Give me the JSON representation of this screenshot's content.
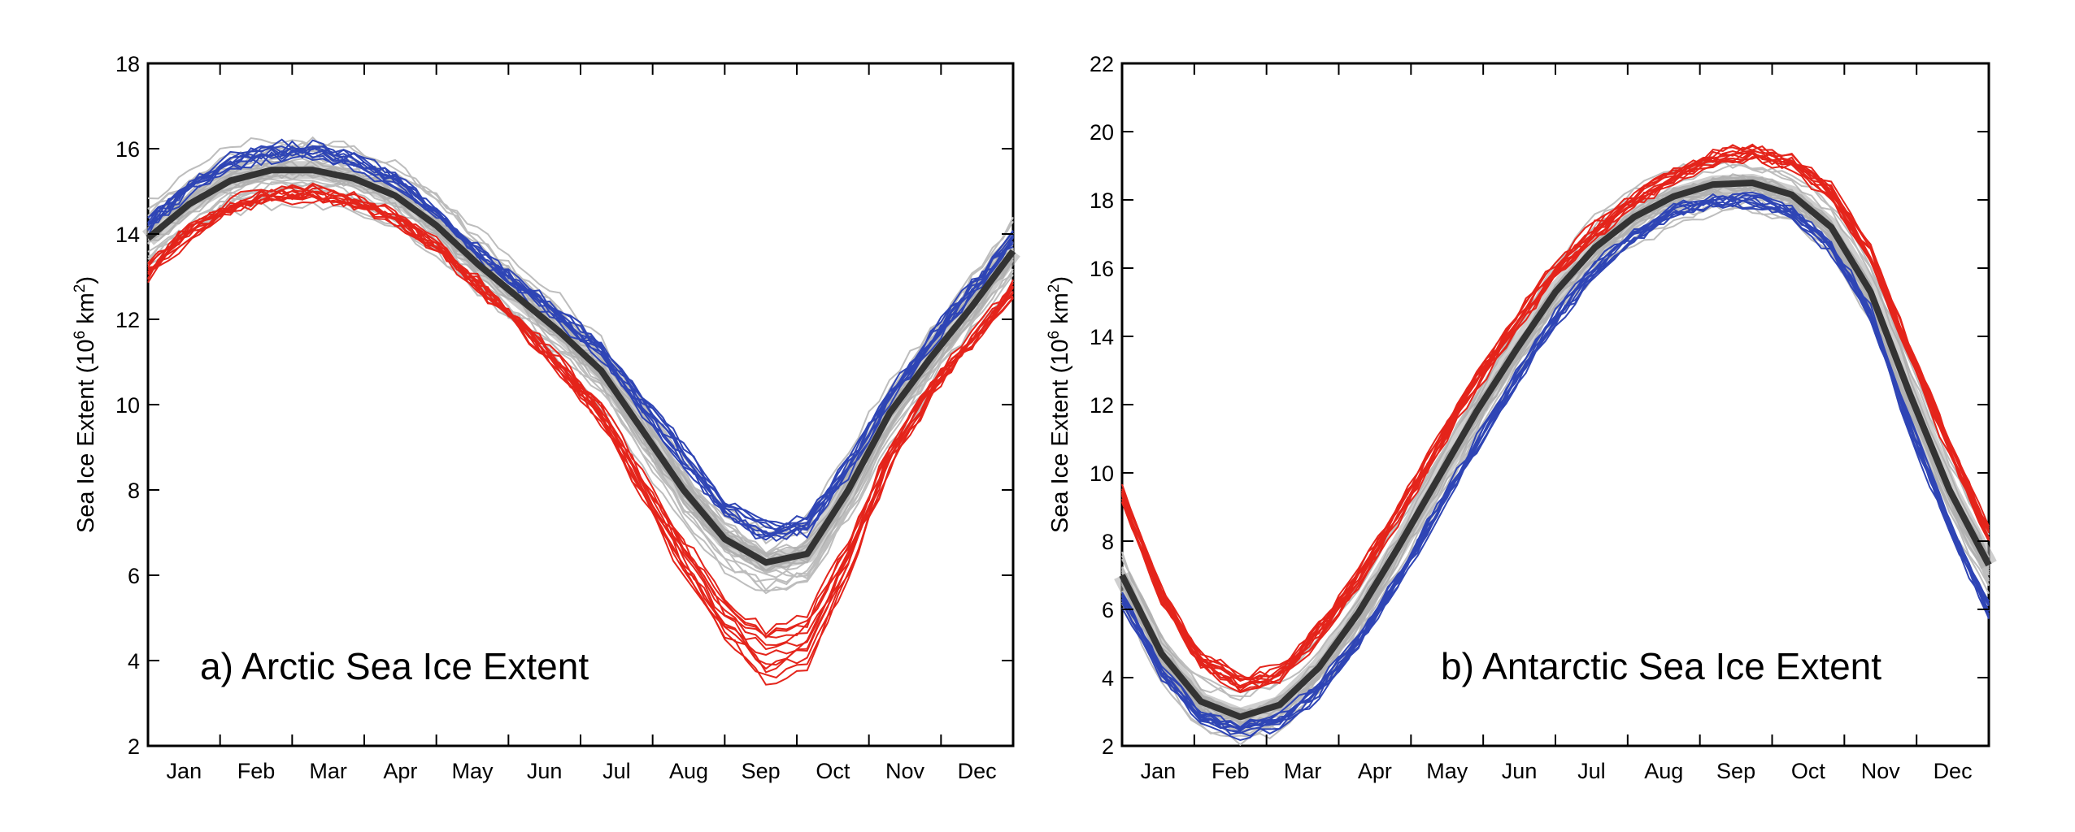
{
  "chart_data": [
    {
      "type": "line",
      "annotation": "a) Arctic Sea Ice Extent",
      "ylabel": "Sea Ice Extent (10⁶ km²)",
      "ylabel_parts": {
        "prefix": "Sea Ice Extent (10",
        "sup1": "6",
        "mid": " km",
        "sup2": "2",
        "suffix": ")"
      },
      "xlabel": "",
      "x_ticks": [
        "Jan",
        "Feb",
        "Mar",
        "Apr",
        "May",
        "Jun",
        "Jul",
        "Aug",
        "Sep",
        "Oct",
        "Nov",
        "Dec"
      ],
      "y_ticks": [
        2,
        4,
        6,
        8,
        10,
        12,
        14,
        16,
        18
      ],
      "ylim": [
        2,
        18
      ],
      "grid": false,
      "colors": {
        "mean": "#333333",
        "grey": "#bdbdbd",
        "blue": "#2f45b5",
        "red": "#e4241b"
      },
      "series": [
        {
          "group": "mean",
          "values": [
            13.9,
            14.7,
            15.25,
            15.5,
            15.5,
            15.3,
            14.9,
            14.2,
            13.3,
            12.5,
            11.7,
            10.8,
            9.4,
            8.0,
            6.85,
            6.3,
            6.5,
            8.0,
            9.8,
            11.1,
            12.3,
            13.6
          ]
        },
        {
          "group": "blue",
          "values": [
            14.3,
            15.2,
            15.75,
            16.1,
            16.05,
            15.85,
            15.35,
            14.6,
            13.7,
            12.9,
            12.2,
            11.4,
            10.2,
            9.0,
            7.8,
            7.2,
            7.4,
            8.7,
            10.3,
            11.6,
            12.8,
            14.0
          ]
        },
        {
          "group": "blue",
          "values": [
            14.1,
            15.0,
            15.55,
            15.8,
            15.8,
            15.6,
            15.15,
            14.45,
            13.5,
            12.7,
            11.95,
            11.1,
            9.8,
            8.6,
            7.4,
            6.8,
            7.0,
            8.4,
            10.1,
            11.4,
            12.6,
            13.8
          ]
        },
        {
          "group": "red",
          "values": [
            13.2,
            14.2,
            14.75,
            15.0,
            15.05,
            14.85,
            14.45,
            13.8,
            12.9,
            12.0,
            11.1,
            10.0,
            8.4,
            6.8,
            5.5,
            4.8,
            5.0,
            6.8,
            9.0,
            10.5,
            11.6,
            12.8
          ]
        },
        {
          "group": "red",
          "values": [
            13.0,
            13.9,
            14.5,
            14.8,
            14.85,
            14.65,
            14.3,
            13.6,
            12.7,
            11.8,
            10.8,
            9.6,
            7.8,
            6.0,
            4.5,
            3.5,
            3.9,
            6.0,
            8.5,
            10.2,
            11.4,
            12.6
          ]
        }
      ]
    },
    {
      "type": "line",
      "annotation": "b) Antarctic Sea Ice Extent",
      "ylabel": "Sea Ice Extent (10⁶ km²)",
      "ylabel_parts": {
        "prefix": "Sea Ice Extent (10",
        "sup1": "6",
        "mid": " km",
        "sup2": "2",
        "suffix": ")"
      },
      "xlabel": "",
      "x_ticks": [
        "Jan",
        "Feb",
        "Mar",
        "Apr",
        "May",
        "Jun",
        "Jul",
        "Aug",
        "Sep",
        "Oct",
        "Nov",
        "Dec"
      ],
      "y_ticks": [
        2,
        4,
        6,
        8,
        10,
        12,
        14,
        16,
        18,
        20,
        22
      ],
      "ylim": [
        2,
        22
      ],
      "grid": false,
      "colors": {
        "mean": "#333333",
        "grey": "#bdbdbd",
        "blue": "#2f45b5",
        "red": "#e4241b"
      },
      "series": [
        {
          "group": "mean",
          "values": [
            7.0,
            4.7,
            3.3,
            2.85,
            3.2,
            4.3,
            5.9,
            7.8,
            9.8,
            11.8,
            13.6,
            15.3,
            16.6,
            17.5,
            18.1,
            18.45,
            18.5,
            18.15,
            17.2,
            15.3,
            12.3,
            9.5,
            7.3
          ]
        },
        {
          "group": "red",
          "values": [
            9.2,
            6.2,
            4.3,
            3.6,
            3.9,
            5.1,
            6.7,
            8.6,
            10.6,
            12.5,
            14.2,
            15.7,
            16.9,
            17.8,
            18.5,
            19.0,
            19.2,
            18.9,
            18.0,
            16.2,
            13.3,
            10.5,
            8.0
          ]
        },
        {
          "group": "blue",
          "values": [
            6.5,
            4.3,
            3.0,
            2.6,
            2.9,
            3.8,
            5.2,
            7.0,
            9.0,
            11.0,
            12.9,
            14.7,
            16.1,
            17.1,
            17.8,
            18.1,
            18.15,
            17.8,
            16.8,
            14.8,
            11.5,
            8.6,
            6.1
          ]
        }
      ]
    }
  ]
}
